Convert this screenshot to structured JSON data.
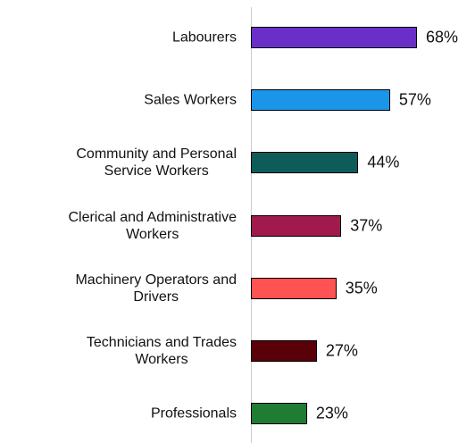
{
  "chart_data": {
    "type": "hbar",
    "categories": [
      "Labourers",
      "Sales Workers",
      "Community and Personal\nService Workers",
      "Clerical and Administrative\nWorkers",
      "Machinery Operators and\nDrivers",
      "Technicians and Trades\nWorkers",
      "Professionals"
    ],
    "values": [
      68,
      57,
      44,
      37,
      35,
      27,
      23
    ],
    "value_labels": [
      "68%",
      "57%",
      "44%",
      "37%",
      "35%",
      "27%",
      "23%"
    ],
    "colors": [
      "#6a2fc9",
      "#1a95e8",
      "#0d5c5a",
      "#a01a4e",
      "#ff5252",
      "#5a0008",
      "#1e7d32"
    ]
  }
}
